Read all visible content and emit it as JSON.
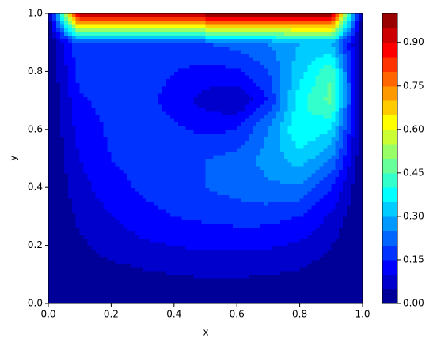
{
  "chart_data": {
    "type": "contourf",
    "xlabel": "x",
    "ylabel": "y",
    "x": [
      0,
      0.1,
      0.2,
      0.3,
      0.4,
      0.5,
      0.6,
      0.7,
      0.8,
      0.9,
      1
    ],
    "y": [
      0,
      0.1,
      0.2,
      0.3,
      0.4,
      0.5,
      0.6,
      0.7,
      0.8,
      0.9,
      1
    ],
    "z": [
      [
        0,
        0,
        0,
        0,
        0,
        0,
        0,
        0,
        0,
        0,
        0
      ],
      [
        0,
        0.02,
        0.03,
        0.04,
        0.05,
        0.055,
        0.055,
        0.05,
        0.04,
        0.02,
        0
      ],
      [
        0,
        0.04,
        0.07,
        0.09,
        0.1,
        0.11,
        0.11,
        0.105,
        0.09,
        0.05,
        0
      ],
      [
        0,
        0.06,
        0.1,
        0.13,
        0.15,
        0.16,
        0.17,
        0.17,
        0.15,
        0.09,
        0
      ],
      [
        0,
        0.08,
        0.13,
        0.16,
        0.18,
        0.2,
        0.22,
        0.24,
        0.24,
        0.15,
        0
      ],
      [
        0,
        0.1,
        0.15,
        0.17,
        0.19,
        0.2,
        0.22,
        0.27,
        0.33,
        0.25,
        0
      ],
      [
        0,
        0.12,
        0.16,
        0.17,
        0.16,
        0.14,
        0.15,
        0.25,
        0.4,
        0.35,
        0
      ],
      [
        0,
        0.14,
        0.17,
        0.17,
        0.13,
        0.08,
        0.05,
        0.15,
        0.38,
        0.47,
        0
      ],
      [
        0,
        0.17,
        0.18,
        0.17,
        0.15,
        0.13,
        0.14,
        0.2,
        0.33,
        0.45,
        0
      ],
      [
        0,
        0.2,
        0.17,
        0.17,
        0.18,
        0.2,
        0.22,
        0.25,
        0.3,
        0.3,
        0
      ],
      [
        0,
        1,
        1,
        1,
        1,
        1,
        1,
        1,
        1,
        1,
        0
      ]
    ],
    "levels": [
      0,
      0.05,
      0.1,
      0.15,
      0.2,
      0.25,
      0.3,
      0.35,
      0.4,
      0.45,
      0.5,
      0.55,
      0.6,
      0.65,
      0.7,
      0.75,
      0.8,
      0.85,
      0.9,
      0.95,
      1
    ],
    "cmap": "jet",
    "xlim": [
      0,
      1
    ],
    "ylim": [
      0,
      1
    ],
    "xticks": [
      {
        "value": 0,
        "label": "0.0"
      },
      0.2,
      0.4,
      0.6,
      0.8,
      {
        "value": 1,
        "label": "1.0"
      }
    ],
    "yticks": [
      {
        "value": 0,
        "label": "0.0"
      },
      0.2,
      0.4,
      0.6,
      0.8,
      {
        "value": 1,
        "label": "1.0"
      }
    ],
    "colorbar_ticks": [
      {
        "value": 0,
        "label": "0.00"
      },
      0.15,
      {
        "value": 0.3,
        "label": "0.30"
      },
      0.45,
      {
        "value": 0.6,
        "label": "0.60"
      },
      0.75,
      {
        "value": 0.9,
        "label": "0.90"
      }
    ]
  }
}
